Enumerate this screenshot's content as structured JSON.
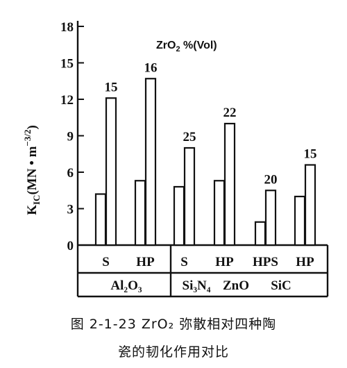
{
  "chart_data": {
    "type": "bar",
    "y_ticks": [
      0,
      3,
      6,
      9,
      12,
      15,
      18
    ],
    "ylim": [
      0,
      18
    ],
    "ylabel": {
      "main": "K",
      "sub": "IC",
      "unit_open": "(MN • m",
      "unit_sup": "−3/2",
      "unit_close": ")"
    },
    "legend_title": {
      "pre": "ZrO",
      "sub": "2",
      "post": " %(Vol)"
    },
    "grid": false,
    "groups": [
      {
        "label": "Al₂O₃",
        "categories": [
          {
            "label": "S",
            "values": [
              4.2,
              12.1
            ],
            "annotation": "15"
          },
          {
            "label": "HP",
            "values": [
              5.3,
              13.7
            ],
            "annotation": "16"
          }
        ]
      },
      {
        "label": "Si₃N₄",
        "categories": [
          {
            "label": "S",
            "values": [
              4.8,
              8.0
            ],
            "annotation": "25"
          },
          {
            "label": "HP",
            "values": [
              5.3,
              10.0
            ],
            "annotation": "22"
          }
        ]
      },
      {
        "label": "ZnO",
        "categories": [
          {
            "label": "HPS",
            "values": [
              1.9,
              4.5
            ],
            "annotation": "20"
          }
        ]
      },
      {
        "label": "SiC",
        "categories": [
          {
            "label": "HP",
            "values": [
              4.0,
              6.6
            ],
            "annotation": "15"
          }
        ]
      }
    ]
  },
  "caption": {
    "line1": "图 2-1-23  ZrO₂ 弥散相对四种陶",
    "line2": "瓷的韧化作用对比"
  }
}
